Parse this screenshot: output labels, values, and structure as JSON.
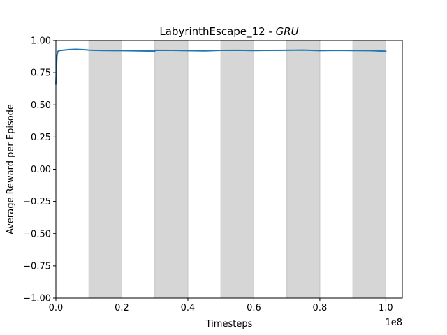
{
  "chart_data": {
    "type": "line",
    "title_main": "LabyrinthEscape_12 - ",
    "title_italic": "GRU",
    "xlabel": "Timesteps",
    "ylabel": "Average Reward per Episode",
    "x_offset_label": "1e8",
    "xlim": [
      0.0,
      1.05
    ],
    "ylim": [
      -1.0,
      1.0
    ],
    "x_ticks": [
      0.0,
      0.2,
      0.4,
      0.6,
      0.8,
      1.0
    ],
    "x_tick_labels": [
      "0.0",
      "0.2",
      "0.4",
      "0.6",
      "0.8",
      "1.0"
    ],
    "y_ticks": [
      -1.0,
      -0.75,
      -0.5,
      -0.25,
      0.0,
      0.25,
      0.5,
      0.75,
      1.0
    ],
    "y_tick_labels": [
      "−1.00",
      "−0.75",
      "−0.50",
      "−0.25",
      "0.00",
      "0.25",
      "0.50",
      "0.75",
      "1.00"
    ],
    "shaded_regions": [
      [
        0.1,
        0.2
      ],
      [
        0.3,
        0.4
      ],
      [
        0.5,
        0.6
      ],
      [
        0.7,
        0.8
      ],
      [
        0.9,
        1.0
      ]
    ],
    "grid": false,
    "series": [
      {
        "color": "#1f77b4",
        "x": [
          0.0,
          0.003,
          0.006,
          0.01,
          0.02,
          0.04,
          0.06,
          0.08,
          0.1,
          0.12,
          0.15,
          0.2,
          0.25,
          0.3,
          0.3,
          0.35,
          0.4,
          0.45,
          0.5,
          0.55,
          0.6,
          0.65,
          0.7,
          0.75,
          0.8,
          0.85,
          0.9,
          0.95,
          1.0
        ],
        "y": [
          0.66,
          0.88,
          0.915,
          0.922,
          0.925,
          0.93,
          0.932,
          0.93,
          0.926,
          0.924,
          0.923,
          0.922,
          0.92,
          0.918,
          0.925,
          0.924,
          0.922,
          0.92,
          0.924,
          0.925,
          0.923,
          0.924,
          0.925,
          0.926,
          0.922,
          0.924,
          0.923,
          0.922,
          0.917
        ]
      }
    ]
  }
}
